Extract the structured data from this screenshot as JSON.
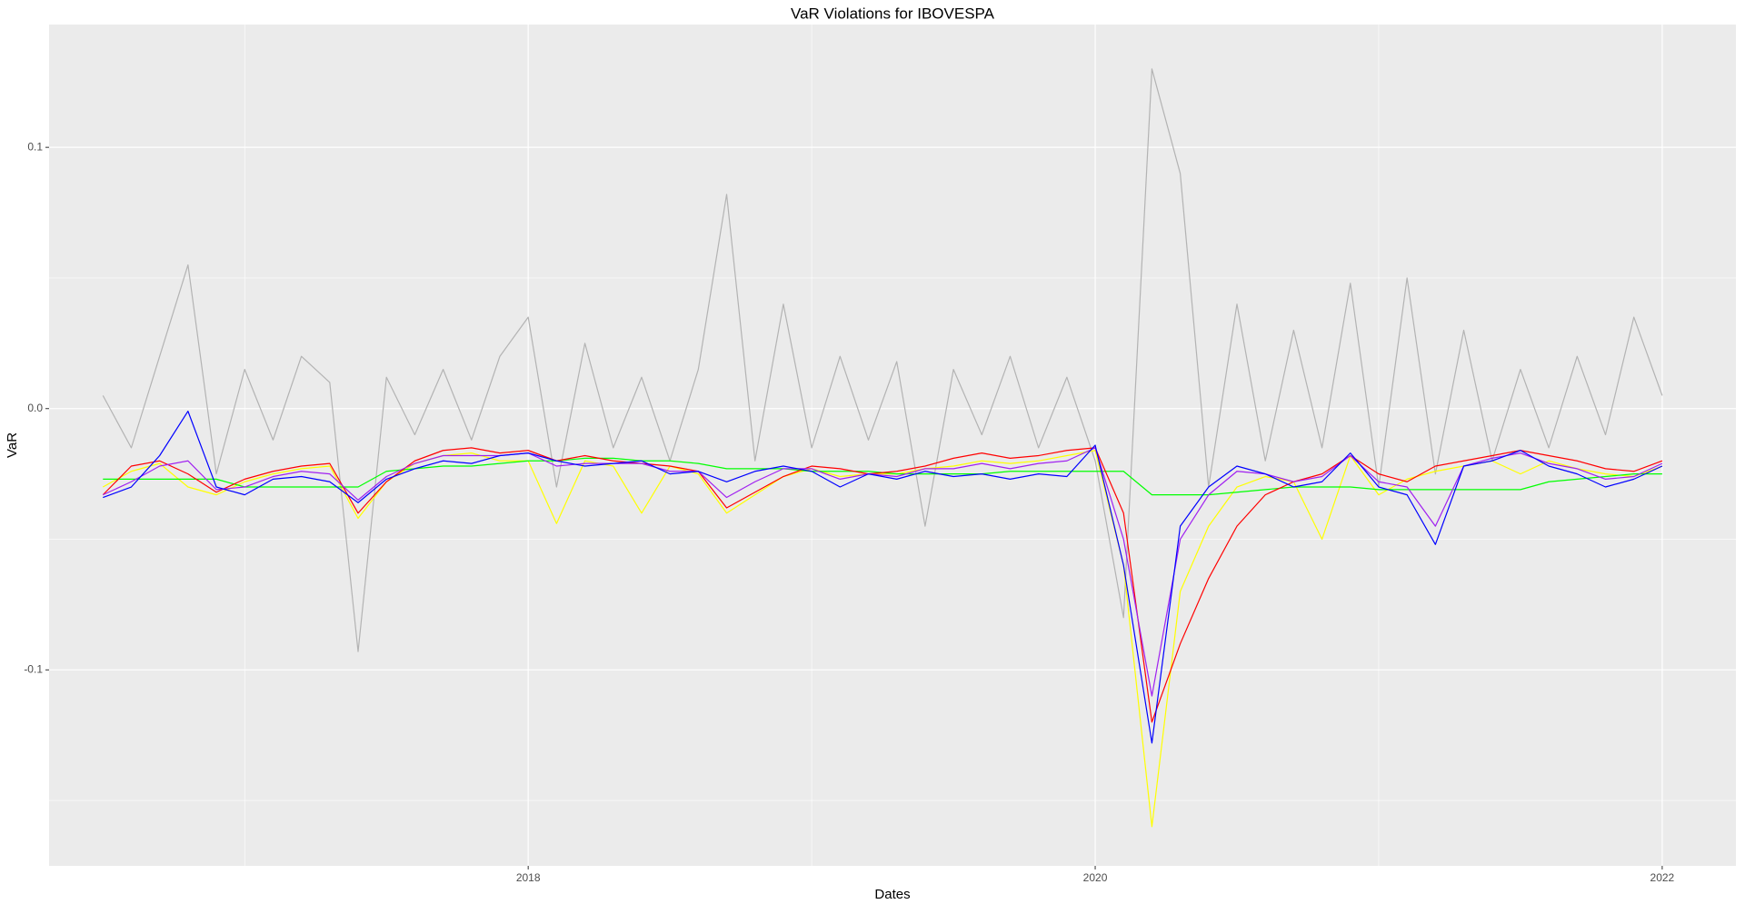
{
  "chart_data": {
    "type": "line",
    "title": "VaR Violations for IBOVESPA",
    "x_label": "Dates",
    "y_label": "VaR",
    "x": [
      2016.5,
      2016.6,
      2016.7,
      2016.8,
      2016.9,
      2017.0,
      2017.1,
      2017.2,
      2017.3,
      2017.4,
      2017.5,
      2017.6,
      2017.7,
      2017.8,
      2017.9,
      2018.0,
      2018.1,
      2018.2,
      2018.3,
      2018.4,
      2018.5,
      2018.6,
      2018.7,
      2018.8,
      2018.9,
      2019.0,
      2019.1,
      2019.2,
      2019.3,
      2019.4,
      2019.5,
      2019.6,
      2019.7,
      2019.8,
      2019.9,
      2020.0,
      2020.1,
      2020.2,
      2020.3,
      2020.4,
      2020.5,
      2020.6,
      2020.7,
      2020.8,
      2020.9,
      2021.0,
      2021.1,
      2021.2,
      2021.3,
      2021.4,
      2021.5,
      2021.6,
      2021.7,
      2021.8,
      2021.9,
      2022.0
    ],
    "series": [
      {
        "color": "#b3b3b3",
        "values": [
          0.005,
          -0.015,
          0.02,
          0.055,
          -0.025,
          0.015,
          -0.012,
          0.02,
          0.01,
          -0.093,
          0.012,
          -0.01,
          0.015,
          -0.012,
          0.02,
          0.035,
          -0.03,
          0.025,
          -0.015,
          0.012,
          -0.02,
          0.015,
          0.082,
          -0.02,
          0.04,
          -0.015,
          0.02,
          -0.012,
          0.018,
          -0.045,
          0.015,
          -0.01,
          0.02,
          -0.015,
          0.012,
          -0.02,
          -0.08,
          0.13,
          0.09,
          -0.03,
          0.04,
          -0.02,
          0.03,
          -0.015,
          0.048,
          -0.03,
          0.05,
          -0.025,
          0.03,
          -0.02,
          0.015,
          -0.015,
          0.02,
          -0.01,
          0.035,
          0.005
        ]
      },
      {
        "color": "#ffff00",
        "values": [
          -0.03,
          -0.024,
          -0.021,
          -0.03,
          -0.033,
          -0.028,
          -0.025,
          -0.023,
          -0.022,
          -0.042,
          -0.028,
          -0.021,
          -0.018,
          -0.017,
          -0.02,
          -0.02,
          -0.044,
          -0.02,
          -0.022,
          -0.04,
          -0.022,
          -0.025,
          -0.04,
          -0.033,
          -0.026,
          -0.023,
          -0.026,
          -0.025,
          -0.025,
          -0.023,
          -0.022,
          -0.02,
          -0.021,
          -0.02,
          -0.018,
          -0.016,
          -0.06,
          -0.16,
          -0.07,
          -0.045,
          -0.03,
          -0.026,
          -0.028,
          -0.05,
          -0.018,
          -0.033,
          -0.027,
          -0.024,
          -0.022,
          -0.02,
          -0.025,
          -0.02,
          -0.023,
          -0.025,
          -0.026,
          -0.022
        ]
      },
      {
        "color": "#00ff00",
        "values": [
          -0.027,
          -0.027,
          -0.027,
          -0.027,
          -0.027,
          -0.03,
          -0.03,
          -0.03,
          -0.03,
          -0.03,
          -0.024,
          -0.023,
          -0.022,
          -0.022,
          -0.021,
          -0.02,
          -0.02,
          -0.019,
          -0.019,
          -0.02,
          -0.02,
          -0.021,
          -0.023,
          -0.023,
          -0.023,
          -0.024,
          -0.024,
          -0.024,
          -0.025,
          -0.025,
          -0.025,
          -0.025,
          -0.024,
          -0.024,
          -0.024,
          -0.024,
          -0.024,
          -0.033,
          -0.033,
          -0.033,
          -0.032,
          -0.031,
          -0.03,
          -0.03,
          -0.03,
          -0.031,
          -0.031,
          -0.031,
          -0.031,
          -0.031,
          -0.031,
          -0.028,
          -0.027,
          -0.026,
          -0.025,
          -0.025
        ]
      },
      {
        "color": "#ff0000",
        "values": [
          -0.033,
          -0.022,
          -0.02,
          -0.025,
          -0.032,
          -0.027,
          -0.024,
          -0.022,
          -0.021,
          -0.04,
          -0.028,
          -0.02,
          -0.016,
          -0.015,
          -0.017,
          -0.016,
          -0.02,
          -0.018,
          -0.02,
          -0.021,
          -0.022,
          -0.024,
          -0.038,
          -0.032,
          -0.026,
          -0.022,
          -0.023,
          -0.025,
          -0.024,
          -0.022,
          -0.019,
          -0.017,
          -0.019,
          -0.018,
          -0.016,
          -0.015,
          -0.04,
          -0.12,
          -0.09,
          -0.065,
          -0.045,
          -0.033,
          -0.028,
          -0.025,
          -0.018,
          -0.025,
          -0.028,
          -0.022,
          -0.02,
          -0.018,
          -0.016,
          -0.018,
          -0.02,
          -0.023,
          -0.024,
          -0.02
        ]
      },
      {
        "color": "#a020f0",
        "values": [
          -0.033,
          -0.028,
          -0.022,
          -0.02,
          -0.031,
          -0.03,
          -0.026,
          -0.024,
          -0.025,
          -0.035,
          -0.026,
          -0.021,
          -0.018,
          -0.018,
          -0.018,
          -0.017,
          -0.022,
          -0.021,
          -0.021,
          -0.021,
          -0.024,
          -0.024,
          -0.034,
          -0.028,
          -0.023,
          -0.023,
          -0.027,
          -0.025,
          -0.026,
          -0.023,
          -0.023,
          -0.021,
          -0.023,
          -0.021,
          -0.02,
          -0.015,
          -0.05,
          -0.11,
          -0.05,
          -0.033,
          -0.024,
          -0.025,
          -0.028,
          -0.026,
          -0.018,
          -0.028,
          -0.03,
          -0.045,
          -0.022,
          -0.019,
          -0.017,
          -0.021,
          -0.023,
          -0.027,
          -0.026,
          -0.021
        ]
      },
      {
        "color": "#0000ff",
        "values": [
          -0.034,
          -0.03,
          -0.018,
          -0.001,
          -0.03,
          -0.033,
          -0.027,
          -0.026,
          -0.028,
          -0.036,
          -0.027,
          -0.023,
          -0.02,
          -0.021,
          -0.018,
          -0.017,
          -0.02,
          -0.022,
          -0.021,
          -0.02,
          -0.025,
          -0.024,
          -0.028,
          -0.024,
          -0.022,
          -0.024,
          -0.03,
          -0.025,
          -0.027,
          -0.024,
          -0.026,
          -0.025,
          -0.027,
          -0.025,
          -0.026,
          -0.014,
          -0.06,
          -0.128,
          -0.045,
          -0.03,
          -0.022,
          -0.025,
          -0.03,
          -0.028,
          -0.017,
          -0.03,
          -0.033,
          -0.052,
          -0.022,
          -0.02,
          -0.016,
          -0.022,
          -0.025,
          -0.03,
          -0.027,
          -0.022
        ]
      }
    ],
    "xlim": [
      2016.31,
      2022.26
    ],
    "xticks": [
      2018,
      2020,
      2022
    ],
    "ylim": [
      -0.175,
      0.147
    ],
    "yticks": [
      -0.1,
      {
        "value": 0,
        "label": "0.0"
      },
      0.1
    ],
    "grid": true
  }
}
